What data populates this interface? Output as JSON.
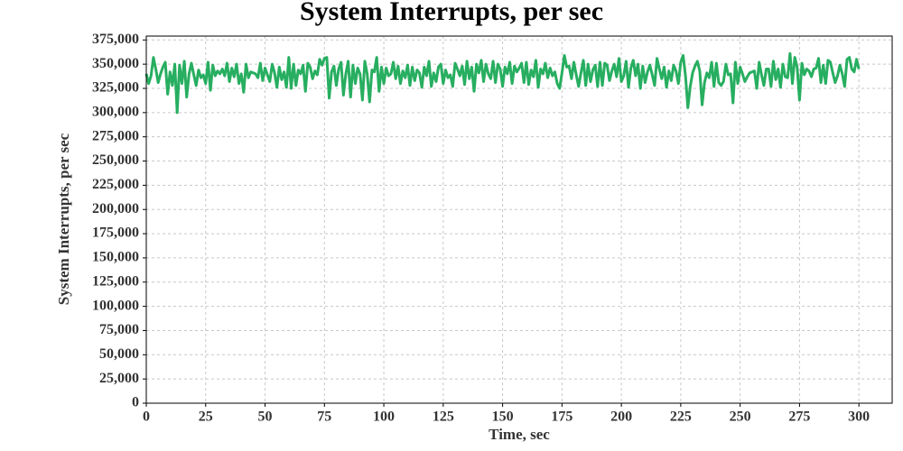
{
  "chart_data": {
    "type": "line",
    "title": "System Interrupts, per sec",
    "xlabel": "Time, sec",
    "ylabel": "System Interrupts, per sec",
    "color": "#27ae60",
    "grid": true,
    "xlim": [
      0,
      314
    ],
    "ylim": [
      0,
      379000
    ],
    "xticks": [
      0,
      25,
      50,
      75,
      100,
      125,
      150,
      175,
      200,
      225,
      250,
      275,
      300
    ],
    "yticks": [
      {
        "value": 0,
        "label": "0"
      },
      {
        "value": 25000,
        "label": "25,000"
      },
      {
        "value": 50000,
        "label": "50,000"
      },
      {
        "value": 75000,
        "label": "75,000"
      },
      {
        "value": 100000,
        "label": "100,000"
      },
      {
        "value": 125000,
        "label": "125,000"
      },
      {
        "value": 150000,
        "label": "150,000"
      },
      {
        "value": 175000,
        "label": "175,000"
      },
      {
        "value": 200000,
        "label": "200,000"
      },
      {
        "value": 225000,
        "label": "225,000"
      },
      {
        "value": 250000,
        "label": "250,000"
      },
      {
        "value": 275000,
        "label": "275,000"
      },
      {
        "value": 300000,
        "label": "300,000"
      },
      {
        "value": 325000,
        "label": "325,000"
      },
      {
        "value": 350000,
        "label": "350,000"
      },
      {
        "value": 375000,
        "label": "375,000"
      }
    ],
    "x": [
      0,
      1,
      2,
      3,
      4,
      5,
      6,
      7,
      8,
      9,
      10,
      11,
      12,
      13,
      14,
      15,
      16,
      17,
      18,
      19,
      20,
      21,
      22,
      23,
      24,
      25,
      26,
      27,
      28,
      29,
      30,
      31,
      32,
      33,
      34,
      35,
      36,
      37,
      38,
      39,
      40,
      41,
      42,
      43,
      44,
      45,
      46,
      47,
      48,
      49,
      50,
      51,
      52,
      53,
      54,
      55,
      56,
      57,
      58,
      59,
      60,
      61,
      62,
      63,
      64,
      65,
      66,
      67,
      68,
      69,
      70,
      71,
      72,
      73,
      74,
      75,
      76,
      77,
      78,
      79,
      80,
      81,
      82,
      83,
      84,
      85,
      86,
      87,
      88,
      89,
      90,
      91,
      92,
      93,
      94,
      95,
      96,
      97,
      98,
      99,
      100,
      101,
      102,
      103,
      104,
      105,
      106,
      107,
      108,
      109,
      110,
      111,
      112,
      113,
      114,
      115,
      116,
      117,
      118,
      119,
      120,
      121,
      122,
      123,
      124,
      125,
      126,
      127,
      128,
      129,
      130,
      131,
      132,
      133,
      134,
      135,
      136,
      137,
      138,
      139,
      140,
      141,
      142,
      143,
      144,
      145,
      146,
      147,
      148,
      149,
      150,
      151,
      152,
      153,
      154,
      155,
      156,
      157,
      158,
      159,
      160,
      161,
      162,
      163,
      164,
      165,
      166,
      167,
      168,
      169,
      170,
      171,
      172,
      173,
      174,
      175,
      176,
      177,
      178,
      179,
      180,
      181,
      182,
      183,
      184,
      185,
      186,
      187,
      188,
      189,
      190,
      191,
      192,
      193,
      194,
      195,
      196,
      197,
      198,
      199,
      200,
      201,
      202,
      203,
      204,
      205,
      206,
      207,
      208,
      209,
      210,
      211,
      212,
      213,
      214,
      215,
      216,
      217,
      218,
      219,
      220,
      221,
      222,
      223,
      224,
      225,
      226,
      227,
      228,
      229,
      230,
      231,
      232,
      233,
      234,
      235,
      236,
      237,
      238,
      239,
      240,
      241,
      242,
      243,
      244,
      245,
      246,
      247,
      248,
      249,
      250,
      251,
      252,
      253,
      254,
      255,
      256,
      257,
      258,
      259,
      260,
      261,
      262,
      263,
      264,
      265,
      266,
      267,
      268,
      269,
      270,
      271,
      272,
      273,
      274,
      275,
      276,
      277,
      278,
      279,
      280,
      281,
      282,
      283,
      284,
      285,
      286,
      287,
      288,
      289,
      290,
      291,
      292,
      293,
      294,
      295,
      296,
      297,
      298,
      299,
      300
    ],
    "values": [
      340000,
      330000,
      338000,
      357000,
      345000,
      331000,
      340000,
      347000,
      352000,
      319000,
      342000,
      328000,
      350000,
      300000,
      349000,
      330000,
      353000,
      316000,
      340000,
      351000,
      339000,
      328000,
      344000,
      336000,
      339000,
      330000,
      352000,
      323000,
      349000,
      338000,
      343000,
      340000,
      345000,
      338000,
      351000,
      332000,
      346000,
      337000,
      350000,
      330000,
      340000,
      321000,
      350000,
      336000,
      342000,
      341000,
      340000,
      336000,
      351000,
      333000,
      346000,
      339000,
      332000,
      350000,
      341000,
      326000,
      347000,
      334000,
      342000,
      326000,
      357000,
      325000,
      350000,
      328000,
      344000,
      340000,
      349000,
      322000,
      351000,
      347000,
      335000,
      343000,
      339000,
      355000,
      349000,
      356000,
      357000,
      315000,
      342000,
      348000,
      328000,
      345000,
      352000,
      318000,
      340000,
      353000,
      316000,
      349000,
      330000,
      346000,
      340000,
      313000,
      353000,
      340000,
      311000,
      344000,
      342000,
      357000,
      322000,
      347000,
      330000,
      346000,
      338000,
      340000,
      352000,
      335000,
      348000,
      330000,
      343000,
      336000,
      349000,
      328000,
      347000,
      333000,
      344000,
      341000,
      326000,
      347000,
      338000,
      353000,
      327000,
      341000,
      332000,
      347000,
      350000,
      330000,
      344000,
      336000,
      339000,
      327000,
      351000,
      345000,
      338000,
      348000,
      329000,
      353000,
      335000,
      347000,
      322000,
      350000,
      341000,
      354000,
      332000,
      350000,
      340000,
      335000,
      353000,
      331000,
      350000,
      345000,
      327000,
      347000,
      340000,
      352000,
      330000,
      348000,
      342000,
      346000,
      351000,
      331000,
      352000,
      329000,
      344000,
      337000,
      354000,
      326000,
      345000,
      340000,
      351000,
      336000,
      346000,
      338000,
      342000,
      330000,
      325000,
      341000,
      359000,
      347000,
      348000,
      335000,
      352000,
      339000,
      327000,
      341000,
      354000,
      328000,
      350000,
      332000,
      344000,
      349000,
      327000,
      352000,
      328000,
      351000,
      349000,
      333000,
      343000,
      350000,
      337000,
      356000,
      332000,
      338000,
      353000,
      326000,
      346000,
      354000,
      338000,
      350000,
      325000,
      348000,
      331000,
      342000,
      349000,
      339000,
      328000,
      356000,
      345000,
      335000,
      347000,
      326000,
      343000,
      333000,
      349000,
      343000,
      330000,
      352000,
      359000,
      338000,
      305000,
      327000,
      341000,
      348000,
      353000,
      343000,
      308000,
      331000,
      341000,
      336000,
      352000,
      327000,
      351000,
      331000,
      328000,
      332000,
      350000,
      339000,
      340000,
      310000,
      352000,
      330000,
      347000,
      340000,
      332000,
      337000,
      341000,
      342000,
      343000,
      325000,
      352000,
      339000,
      328000,
      345000,
      345000,
      327000,
      353000,
      334000,
      345000,
      326000,
      350000,
      337000,
      336000,
      361000,
      330000,
      357000,
      347000,
      313000,
      351000,
      339000,
      345000,
      343000,
      337000,
      345000,
      346000,
      356000,
      331000,
      349000,
      330000,
      354000,
      352000,
      341000,
      331000,
      338000,
      349000,
      340000,
      327000,
      355000,
      357000,
      345000,
      342000,
      355000,
      345000
    ]
  }
}
